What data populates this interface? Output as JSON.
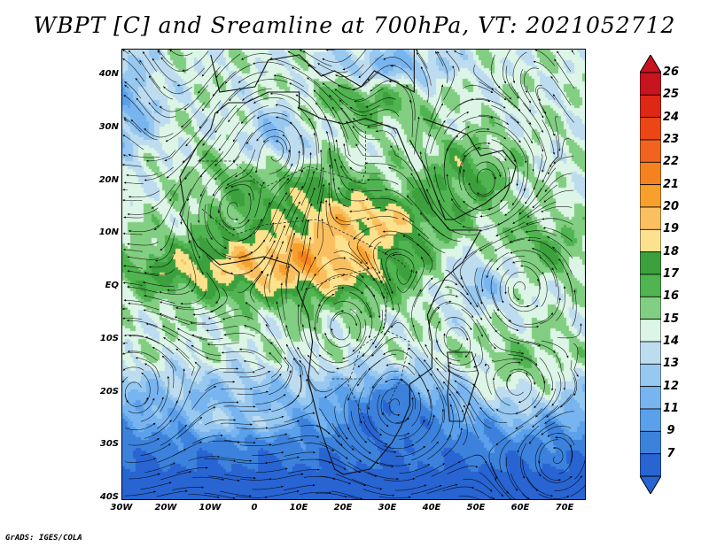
{
  "title": "WBPT [C] and Sreamline at 700hPa, VT: 2021052712",
  "credit": "GrADS: IGES/COLA",
  "map": {
    "lon_range": [
      -30,
      75
    ],
    "lat_range": [
      -40,
      45
    ],
    "lat_ticks": [
      "40N",
      "30N",
      "20N",
      "10N",
      "EQ",
      "10S",
      "20S",
      "30S",
      "40S"
    ],
    "lon_ticks": [
      "30W",
      "20W",
      "10W",
      "0",
      "10E",
      "20E",
      "30E",
      "40E",
      "50E",
      "60E",
      "70E"
    ]
  },
  "colorbar": {
    "labels": [
      "26",
      "25",
      "24",
      "23",
      "22",
      "21",
      "20",
      "19",
      "18",
      "17",
      "16",
      "15",
      "14",
      "13",
      "12",
      "11",
      "9",
      "7"
    ],
    "colors": [
      "#c8141e",
      "#dc2814",
      "#eb4614",
      "#f0641e",
      "#f5821e",
      "#f8a02c",
      "#fac060",
      "#fde28e",
      "#3ca03c",
      "#50b450",
      "#82ce82",
      "#dcf5e6",
      "#bedcf0",
      "#96c8f0",
      "#78b4f0",
      "#5aa0eb",
      "#3c82dc",
      "#2864d2"
    ]
  }
}
